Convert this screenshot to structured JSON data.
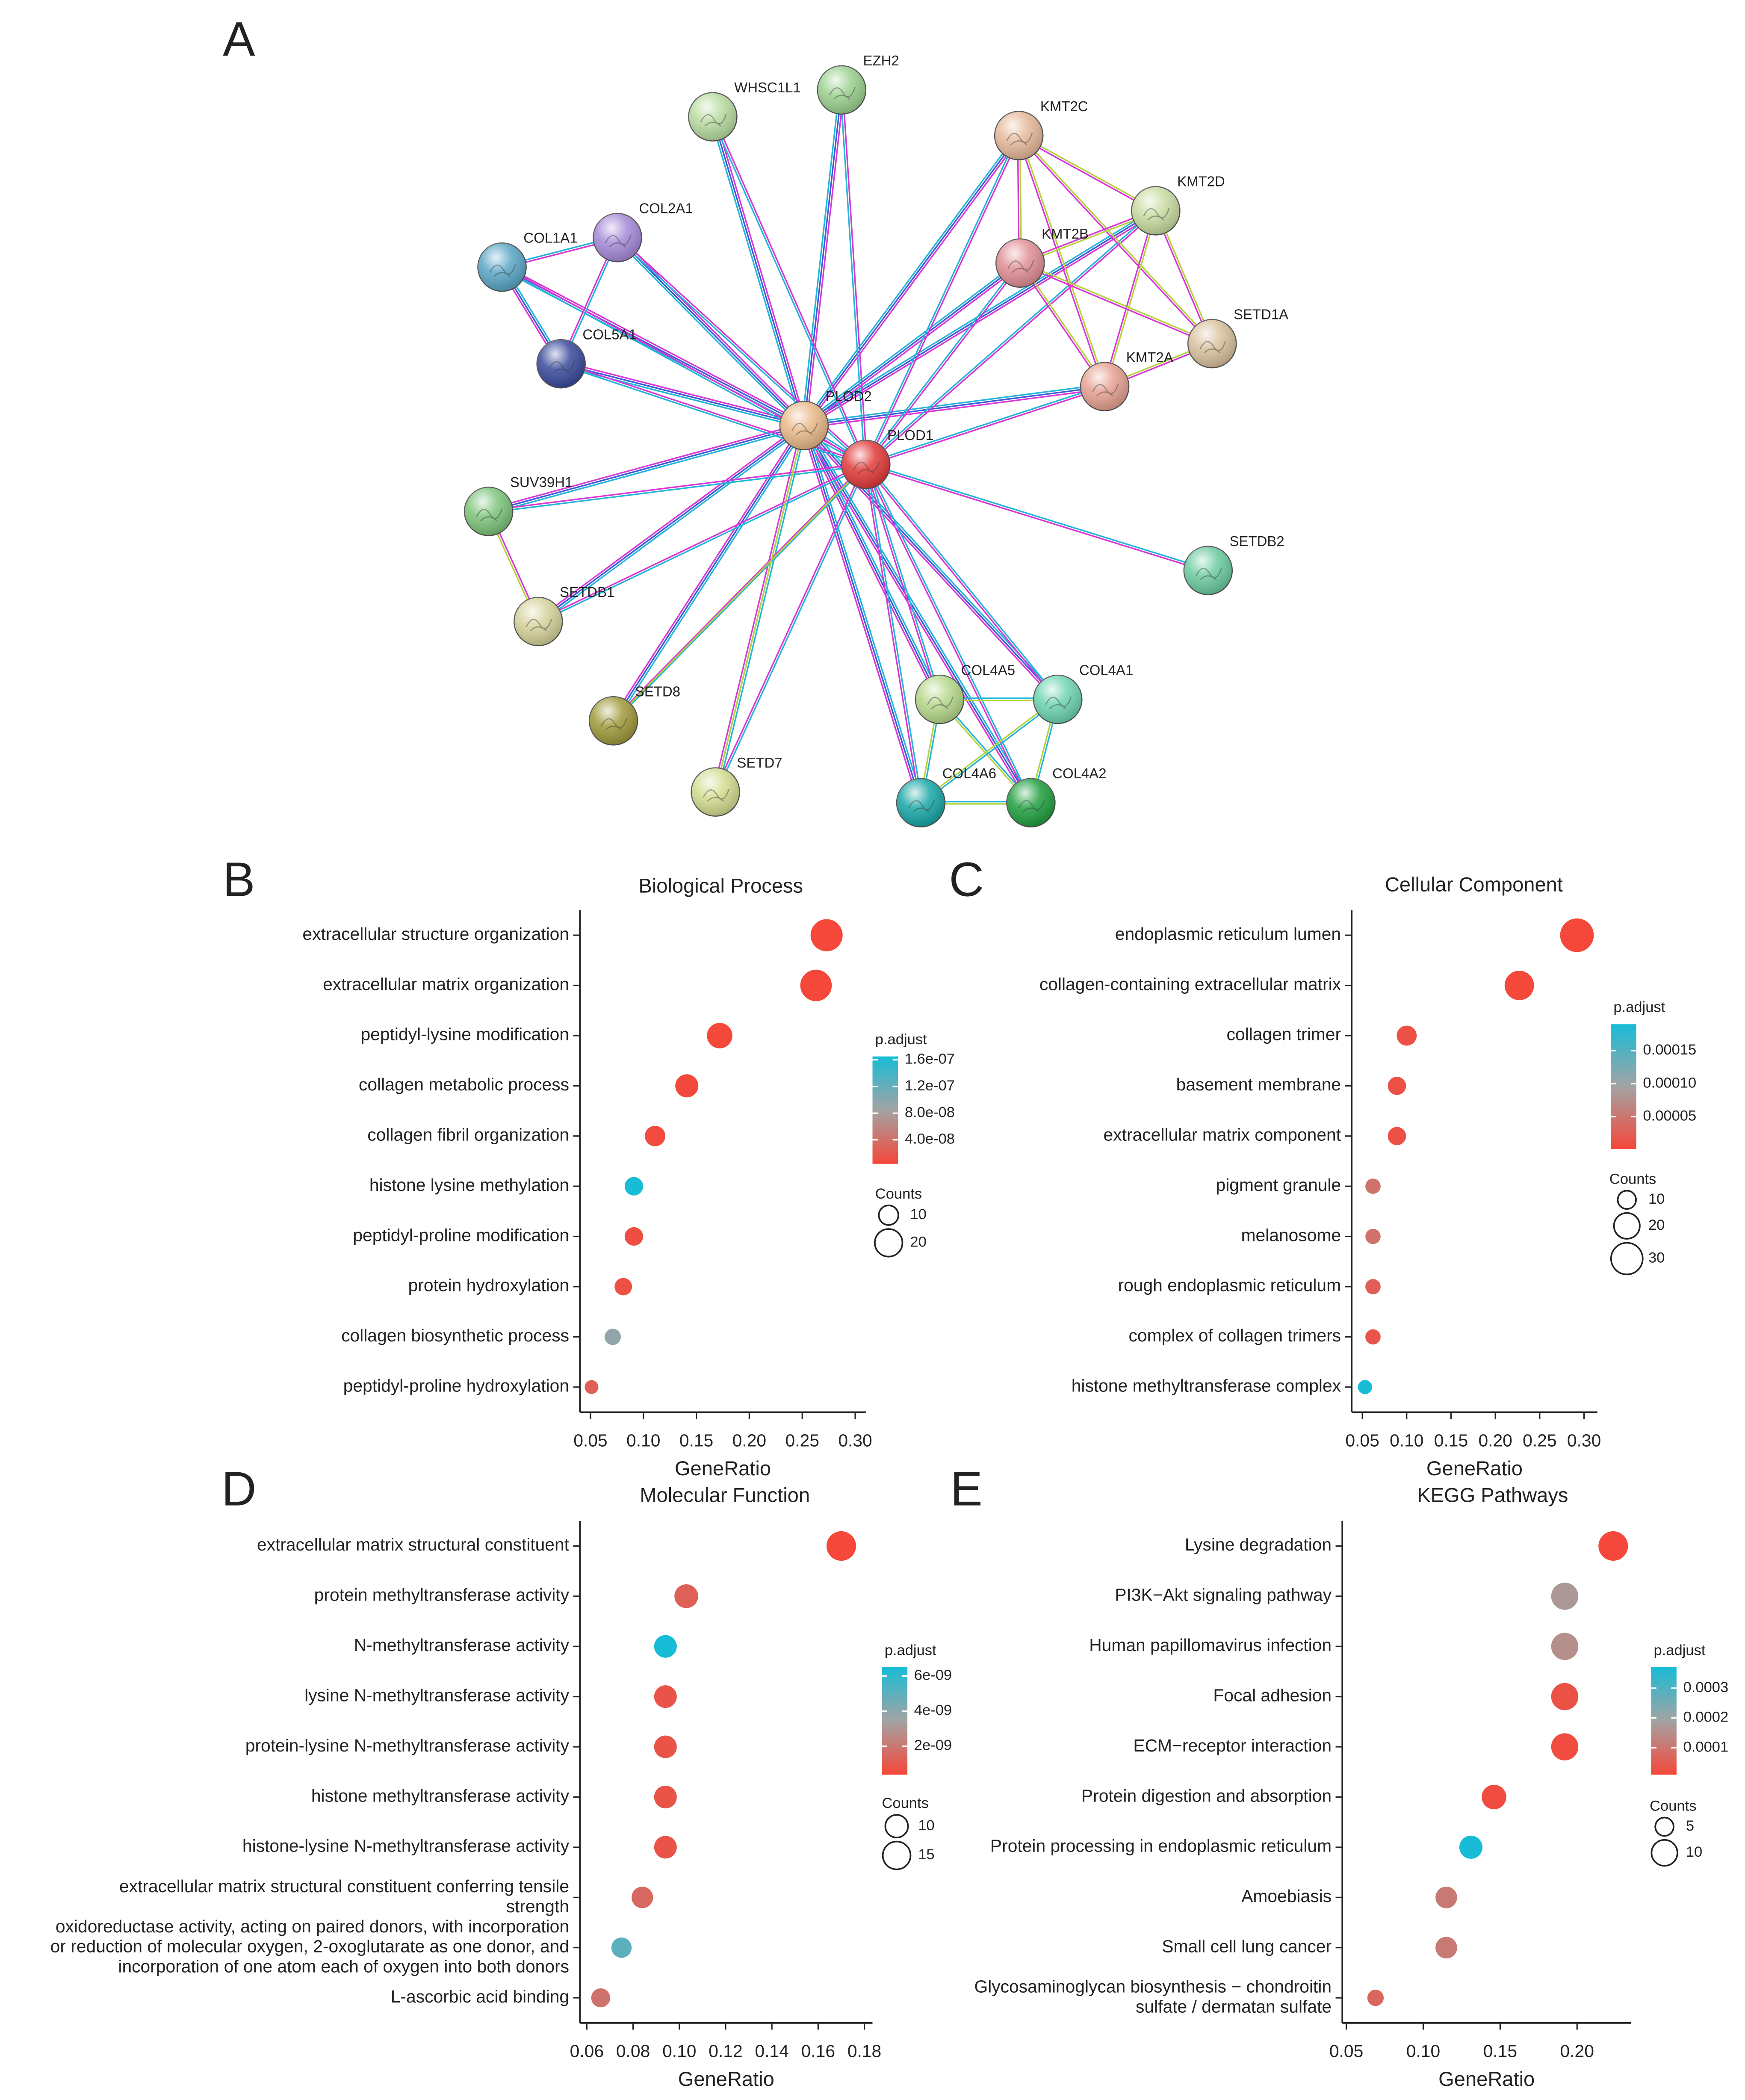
{
  "network": {
    "label": "A",
    "nodes": [
      "EZH2",
      "WHSC1L1",
      "KMT2C",
      "KMT2D",
      "COL2A1",
      "COL1A1",
      "KMT2B",
      "SETD1A",
      "COL5A1",
      "KMT2A",
      "PLOD2",
      "PLOD1",
      "SUV39H1",
      "SETDB2",
      "SETDB1",
      "COL4A5",
      "COL4A1",
      "SETD8",
      "SETD7",
      "COL4A6",
      "COL4A2"
    ]
  },
  "chart_data": [
    {
      "type": "dot",
      "panel": "B",
      "title": "Biological Process",
      "x_label": "GeneRatio",
      "categories": [
        "extracellular structure organization",
        "extracellular matrix organization",
        "peptidyl-lysine modification",
        "collagen metabolic process",
        "collagen fibril organization",
        "histone lysine methylation",
        "peptidyl-proline modification",
        "protein hydroxylation",
        "collagen biosynthetic process",
        "peptidyl-proline hydroxylation"
      ],
      "values": [
        0.273,
        0.263,
        0.172,
        0.141,
        0.111,
        0.091,
        0.091,
        0.081,
        0.071,
        0.051
      ],
      "counts": [
        27,
        26,
        17,
        14,
        11,
        9,
        9,
        8,
        7,
        5
      ],
      "p_adjust": [
        4e-09,
        4e-09,
        5e-09,
        6e-09,
        8e-09,
        1.65e-07,
        1e-08,
        1.2e-08,
        9.5e-08,
        2.5e-08
      ],
      "xlim": [
        0.04,
        0.31
      ],
      "xticks": [
        {
          "value": 0.05,
          "label": "0.05"
        },
        {
          "value": 0.1,
          "label": "0.10"
        },
        {
          "value": 0.15,
          "label": "0.15"
        },
        {
          "value": 0.2,
          "label": "0.20"
        },
        {
          "value": 0.25,
          "label": "0.25"
        },
        {
          "value": 0.3,
          "label": "0.30"
        }
      ],
      "colorbar": {
        "title": "p.adjust",
        "range": [
          4e-09,
          1.65e-07
        ],
        "ticks": [
          {
            "value": 4e-08,
            "label": "4.0e-08"
          },
          {
            "value": 8e-08,
            "label": "8.0e-08"
          },
          {
            "value": 1.2e-07,
            "label": "1.2e-07"
          },
          {
            "value": 1.6e-07,
            "label": "1.6e-07"
          }
        ]
      },
      "size_legend": {
        "title": "Counts",
        "values": [
          10,
          20
        ]
      },
      "color_low": "#f5473a",
      "color_mid": "#a3a3a3",
      "color_high": "#18bcd6"
    },
    {
      "type": "dot",
      "panel": "C",
      "title": "Cellular Component",
      "x_label": "GeneRatio",
      "categories": [
        "endoplasmic reticulum lumen",
        "collagen-containing extracellular matrix",
        "collagen trimer",
        "basement membrane",
        "extracellular matrix component",
        "pigment granule",
        "melanosome",
        "rough endoplasmic reticulum",
        "complex of collagen trimers",
        "histone methyltransferase complex"
      ],
      "values": [
        0.292,
        0.227,
        0.1,
        0.089,
        0.089,
        0.062,
        0.062,
        0.062,
        0.062,
        0.053
      ],
      "counts": [
        34,
        26,
        12,
        10,
        10,
        7,
        7,
        7,
        7,
        6
      ],
      "p_adjust": [
        1e-06,
        2e-06,
        1e-05,
        1e-05,
        1e-05,
        4.5e-05,
        4.5e-05,
        2.5e-05,
        1.5e-05,
        0.00019
      ],
      "xlim": [
        0.038,
        0.315
      ],
      "xticks": [
        {
          "value": 0.05,
          "label": "0.05"
        },
        {
          "value": 0.1,
          "label": "0.10"
        },
        {
          "value": 0.15,
          "label": "0.15"
        },
        {
          "value": 0.2,
          "label": "0.20"
        },
        {
          "value": 0.25,
          "label": "0.25"
        },
        {
          "value": 0.3,
          "label": "0.30"
        }
      ],
      "colorbar": {
        "title": "p.adjust",
        "range": [
          1e-06,
          0.00019
        ],
        "ticks": [
          {
            "value": 5e-05,
            "label": "0.00005"
          },
          {
            "value": 0.0001,
            "label": "0.00010"
          },
          {
            "value": 0.00015,
            "label": "0.00015"
          }
        ]
      },
      "size_legend": {
        "title": "Counts",
        "values": [
          10,
          20,
          30
        ]
      },
      "color_low": "#f5473a",
      "color_mid": "#a3a3a3",
      "color_high": "#18bcd6"
    },
    {
      "type": "dot",
      "panel": "D",
      "title": "Molecular Function",
      "x_label": "GeneRatio",
      "categories": [
        "extracellular matrix structural constituent",
        "protein methyltransferase activity",
        "N-methyltransferase activity",
        "lysine N-methyltransferase activity",
        "protein-lysine N-methyltransferase activity",
        "histone methyltransferase activity",
        "histone-lysine N-methyltransferase activity",
        "extracellular matrix structural constituent conferring tensile\nstrength",
        "oxidoreductase activity, acting on paired donors, with incorporation\nor reduction of molecular oxygen, 2-oxoglutarate as one donor, and\nincorporation of one atom each of oxygen into both donors",
        "L-ascorbic acid binding"
      ],
      "values": [
        0.17,
        0.103,
        0.094,
        0.094,
        0.094,
        0.094,
        0.094,
        0.084,
        0.075,
        0.066
      ],
      "counts": [
        17,
        11,
        10,
        10,
        10,
        10,
        10,
        9,
        8,
        7
      ],
      "p_adjust": [
        3.8e-10,
        1.2e-09,
        6.5e-09,
        8e-10,
        8e-10,
        8e-10,
        8e-10,
        1.5e-09,
        5e-09,
        1.8e-09
      ],
      "xlim": [
        0.057,
        0.1835
      ],
      "xticks": [
        {
          "value": 0.06,
          "label": "0.06"
        },
        {
          "value": 0.08,
          "label": "0.08"
        },
        {
          "value": 0.1,
          "label": "0.10"
        },
        {
          "value": 0.12,
          "label": "0.12"
        },
        {
          "value": 0.14,
          "label": "0.14"
        },
        {
          "value": 0.16,
          "label": "0.16"
        },
        {
          "value": 0.18,
          "label": "0.18"
        }
      ],
      "colorbar": {
        "title": "p.adjust",
        "range": [
          3.8e-10,
          6.5e-09
        ],
        "ticks": [
          {
            "value": 2e-09,
            "label": "2e-09"
          },
          {
            "value": 4e-09,
            "label": "4e-09"
          },
          {
            "value": 6e-09,
            "label": "6e-09"
          }
        ]
      },
      "size_legend": {
        "title": "Counts",
        "values": [
          10,
          15
        ]
      },
      "color_low": "#f5473a",
      "color_mid": "#a3a3a3",
      "color_high": "#18bcd6"
    },
    {
      "type": "dot",
      "panel": "E",
      "title": "KEGG Pathways",
      "x_label": "GeneRatio",
      "categories": [
        "Lysine degradation",
        "PI3K−Akt signaling pathway",
        "Human papillomavirus infection",
        "Focal adhesion",
        "ECM−receptor interaction",
        "Protein digestion and absorption",
        "Protein processing in endoplasmic reticulum",
        "Amoebiasis",
        "Small cell lung cancer",
        "Glycosaminoglycan biosynthesis − chondroitin\nsulfate / dermatan sulfate"
      ],
      "values": [
        0.2235,
        0.192,
        0.192,
        0.192,
        0.192,
        0.146,
        0.131,
        0.115,
        0.115,
        0.069
      ],
      "counts": [
        13,
        11,
        11,
        11,
        11,
        9,
        8,
        7,
        7,
        4
      ],
      "p_adjust": [
        1e-05,
        0.00017,
        0.00015,
        3e-05,
        2e-05,
        2e-05,
        0.00037,
        0.00011,
        0.00011,
        7e-05
      ],
      "xlim": [
        0.0474,
        0.235
      ],
      "xticks": [
        {
          "value": 0.05,
          "label": "0.05"
        },
        {
          "value": 0.1,
          "label": "0.10"
        },
        {
          "value": 0.15,
          "label": "0.15"
        },
        {
          "value": 0.2,
          "label": "0.20"
        }
      ],
      "colorbar": {
        "title": "p.adjust",
        "range": [
          1e-05,
          0.00037
        ],
        "ticks": [
          0.0001,
          0.0002,
          0.0003
        ]
      },
      "size_legend": {
        "title": "Counts",
        "values": [
          5,
          10
        ]
      },
      "color_low": "#f5473a",
      "color_mid": "#a3a3a3",
      "color_high": "#18bcd6"
    }
  ]
}
